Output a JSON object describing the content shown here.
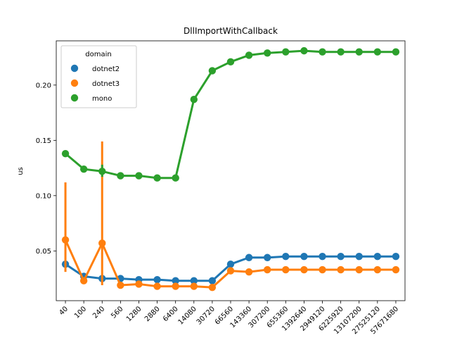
{
  "chart_data": {
    "type": "line",
    "title": "DllImportWithCallback",
    "xlabel": "",
    "ylabel": "us",
    "categories": [
      "40",
      "100",
      "240",
      "560",
      "1280",
      "2880",
      "6400",
      "14080",
      "30720",
      "66560",
      "143360",
      "307200",
      "655360",
      "1392640",
      "2949120",
      "6225920",
      "13107200",
      "27525120",
      "57671680"
    ],
    "ylim": [
      0.005,
      0.24
    ],
    "yticks": [
      0.05,
      0.1,
      0.15,
      0.2
    ],
    "ytick_labels": [
      "0.05",
      "0.10",
      "0.15",
      "0.20"
    ],
    "grid": false,
    "legend": {
      "title": "domain",
      "placement": "top-left"
    },
    "series": [
      {
        "name": "dotnet2",
        "color": "#1f77b4",
        "values": [
          0.038,
          0.027,
          0.025,
          0.025,
          0.024,
          0.024,
          0.023,
          0.023,
          0.023,
          0.038,
          0.044,
          0.044,
          0.045,
          0.045,
          0.045,
          0.045,
          0.045,
          0.045,
          0.045
        ],
        "errors": [
          null,
          null,
          null,
          null,
          null,
          null,
          null,
          null,
          null,
          null,
          null,
          null,
          null,
          null,
          null,
          null,
          null,
          null,
          null
        ]
      },
      {
        "name": "dotnet3",
        "color": "#ff7f0e",
        "values": [
          0.06,
          0.023,
          0.057,
          0.019,
          0.02,
          0.018,
          0.018,
          0.018,
          0.017,
          0.032,
          0.031,
          0.033,
          0.033,
          0.033,
          0.033,
          0.033,
          0.033,
          0.033,
          0.033
        ],
        "errors": [
          [
            0.031,
            0.112
          ],
          null,
          [
            0.019,
            0.149
          ],
          null,
          null,
          null,
          null,
          null,
          null,
          null,
          null,
          null,
          null,
          null,
          null,
          null,
          null,
          null,
          null
        ]
      },
      {
        "name": "mono",
        "color": "#2ca02c",
        "values": [
          0.138,
          0.124,
          0.122,
          0.118,
          0.118,
          0.116,
          0.116,
          0.187,
          0.213,
          0.221,
          0.227,
          0.229,
          0.23,
          0.231,
          0.23,
          0.23,
          0.23,
          0.23,
          0.23
        ],
        "errors": [
          null,
          null,
          [
            0.117,
            0.128
          ],
          null,
          null,
          null,
          null,
          null,
          null,
          null,
          null,
          null,
          null,
          null,
          null,
          null,
          null,
          null,
          null
        ]
      }
    ]
  }
}
